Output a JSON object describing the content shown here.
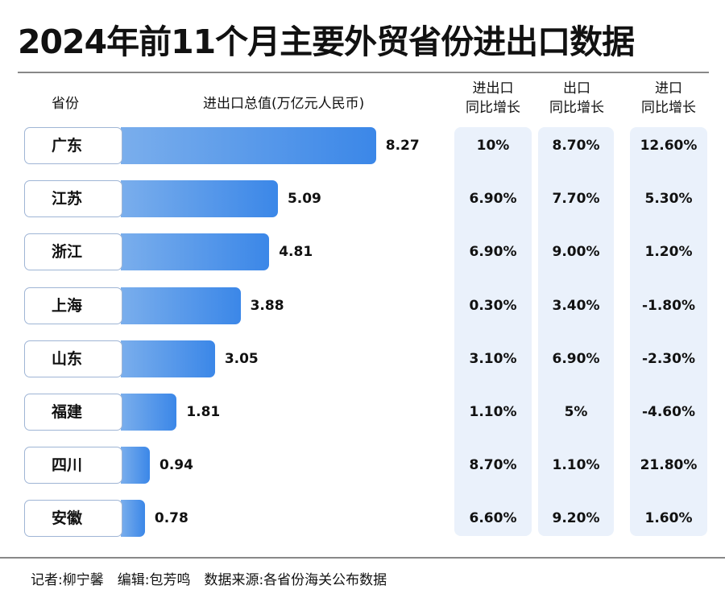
{
  "title": "2024年前11个月主要外贸省份进出口数据",
  "headers": {
    "province": "省份",
    "total": "进出口总值(万亿元人民币)",
    "c1a": "进出口",
    "c1b": "同比增长",
    "c2a": "出口",
    "c2b": "同比增长",
    "c3a": "进口",
    "c3b": "同比增长"
  },
  "footer": "记者:柳宁馨　编辑:包芳鸣　数据来源:各省份海关公布数据",
  "chart_data": {
    "type": "bar",
    "title": "2024年前11个月主要外贸省份进出口数据",
    "ylabel": "进出口总值(万亿元人民币)",
    "categories": [
      "广东",
      "江苏",
      "浙江",
      "上海",
      "山东",
      "福建",
      "四川",
      "安徽"
    ],
    "values": [
      8.27,
      5.09,
      4.81,
      3.88,
      3.05,
      1.81,
      0.94,
      0.78
    ],
    "labels": [
      "8.27",
      "5.09",
      "4.81",
      "3.88",
      "3.05",
      "1.81",
      "0.94",
      "0.78"
    ],
    "table": {
      "trade_yoy": [
        "10%",
        "6.90%",
        "6.90%",
        "0.30%",
        "3.10%",
        "1.10%",
        "8.70%",
        "6.60%"
      ],
      "export_yoy": [
        "8.70%",
        "7.70%",
        "9.00%",
        "3.40%",
        "6.90%",
        "5%",
        "1.10%",
        "9.20%"
      ],
      "import_yoy": [
        "12.60%",
        "5.30%",
        "1.20%",
        "-1.80%",
        "-2.30%",
        "-4.60%",
        "21.80%",
        "1.60%"
      ]
    }
  }
}
